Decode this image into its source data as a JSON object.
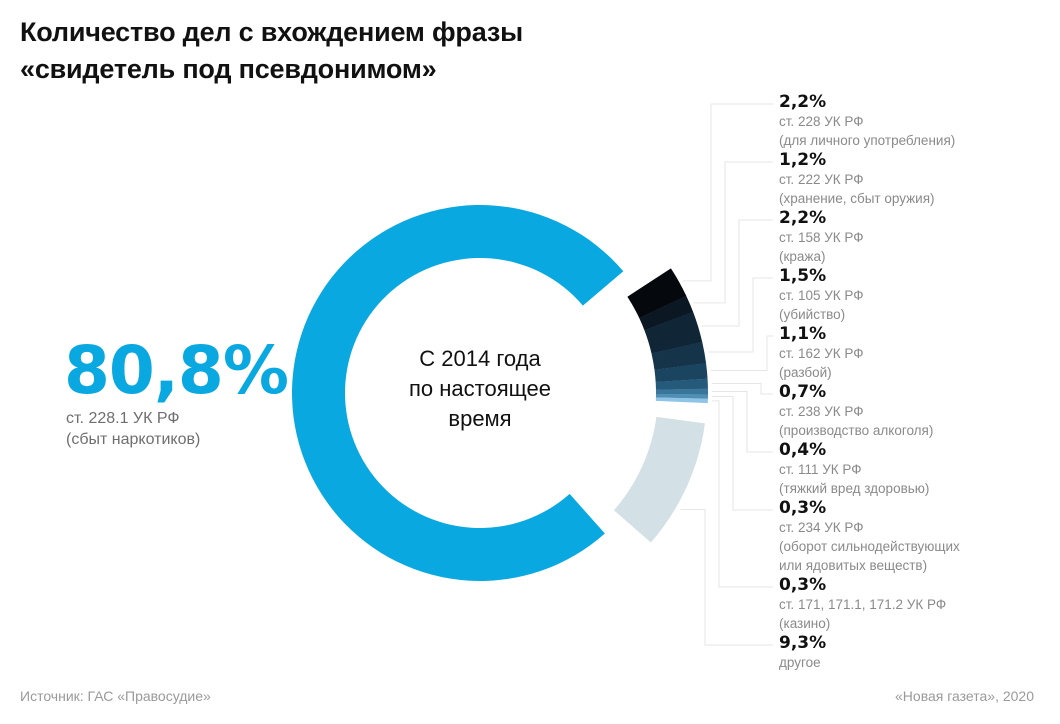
{
  "title": {
    "line1": "Количество дел с вхождением фразы",
    "line2": "«свидетель под псевдонимом»"
  },
  "center_text": [
    "С 2014 года",
    "по настоящее",
    "время"
  ],
  "highlight": {
    "value_label": "80,8%",
    "article": "ст. 228.1 УК РФ",
    "description": "(сбыт наркотиков)"
  },
  "footer": {
    "source": "Источник: ГАС «Правосудие»",
    "credit": "«Новая газета», 2020"
  },
  "colors": {
    "main": "#0aa8e0",
    "other": "#d3e0e6",
    "small_slices": [
      "#05090d",
      "#0b1722",
      "#102637",
      "#153349",
      "#1b4460",
      "#265a7a",
      "#3a7699",
      "#4f8fb4",
      "#8fc4e6"
    ]
  },
  "chart_data": {
    "type": "pie",
    "variant": "donut",
    "title": "Количество дел с вхождением фразы «свидетель под псевдонимом»",
    "subtitle": "С 2014 года по настоящее время",
    "unit": "%",
    "slices": [
      {
        "label": "ст. 228.1 УК РФ",
        "description": "(сбыт наркотиков)",
        "value": 80.8,
        "value_label": "80,8%"
      },
      {
        "label": "ст. 228 УК РФ",
        "description": "(для личного употребления)",
        "value": 2.2,
        "value_label": "2,2%"
      },
      {
        "label": "ст. 222 УК РФ",
        "description": "(хранение, сбыт оружия)",
        "value": 1.2,
        "value_label": "1,2%"
      },
      {
        "label": "ст. 158 УК РФ",
        "description": "(кража)",
        "value": 2.2,
        "value_label": "2,2%"
      },
      {
        "label": "ст. 105 УК РФ",
        "description": "(убийство)",
        "value": 1.5,
        "value_label": "1,5%"
      },
      {
        "label": "ст. 162 УК РФ",
        "description": "(разбой)",
        "value": 1.1,
        "value_label": "1,1%"
      },
      {
        "label": "ст. 238 УК РФ",
        "description": "(производство алкоголя)",
        "value": 0.7,
        "value_label": "0,7%"
      },
      {
        "label": "ст. 111 УК РФ",
        "description": "(тяжкий вред здоровью)",
        "value": 0.4,
        "value_label": "0,4%"
      },
      {
        "label": "ст. 234 УК РФ",
        "description": "(оборот сильнодействующих\nили ядовитых веществ)",
        "description_lines": [
          "(оборот сильнодействующих",
          "или ядовитых веществ)"
        ],
        "value": 0.3,
        "value_label": "0,3%"
      },
      {
        "label": "ст. 171, 171.1, 171.2  УК РФ",
        "description": "(казино)",
        "value": 0.3,
        "value_label": "0,3%"
      },
      {
        "label": "",
        "description": "другое",
        "value": 9.3,
        "value_label": "9,3%"
      }
    ],
    "legend": "right"
  }
}
